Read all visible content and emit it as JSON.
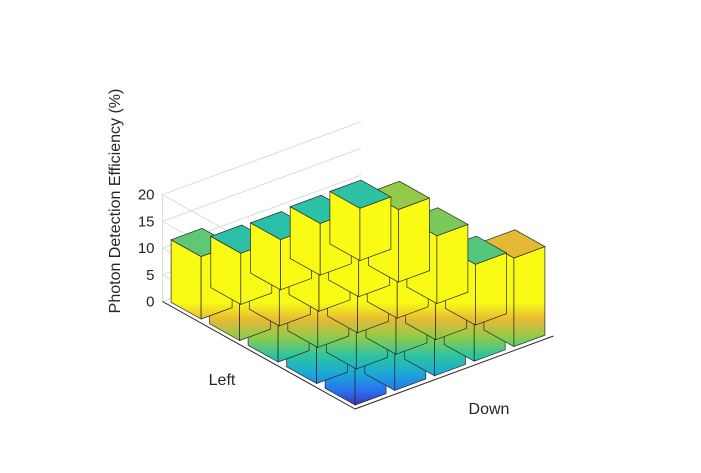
{
  "chart_data": {
    "type": "bar3d",
    "title": "",
    "zlabel": "Photon Detection Efficiency (%)",
    "xlabel": "Left",
    "ylabel": "Down",
    "zlim": [
      0,
      20
    ],
    "zticks": [
      "0",
      "5",
      "10",
      "15",
      "20"
    ],
    "colormap": "parula",
    "grid": true,
    "rows": 5,
    "cols": 5,
    "values": [
      [
        11.7,
        9.6,
        9.4,
        9.7,
        9.8
      ],
      [
        9.8,
        9.8,
        9.3,
        10.4,
        13.6
      ],
      [
        10.7,
        10.6,
        9.9,
        11.4,
        12.7
      ],
      [
        11.5,
        10.3,
        10.8,
        11.2,
        11.4
      ],
      [
        14.5,
        12.4,
        11.4,
        12.6,
        16.6
      ]
    ]
  },
  "colors": {
    "colormap_stops": [
      "#3e26a8",
      "#2c6ff0",
      "#1aa9d6",
      "#2ec4a0",
      "#8ccc4b",
      "#e6b935",
      "#f9fb15"
    ],
    "edge": "#262626",
    "grid": "#dcdcdc",
    "axis": "#262626"
  }
}
